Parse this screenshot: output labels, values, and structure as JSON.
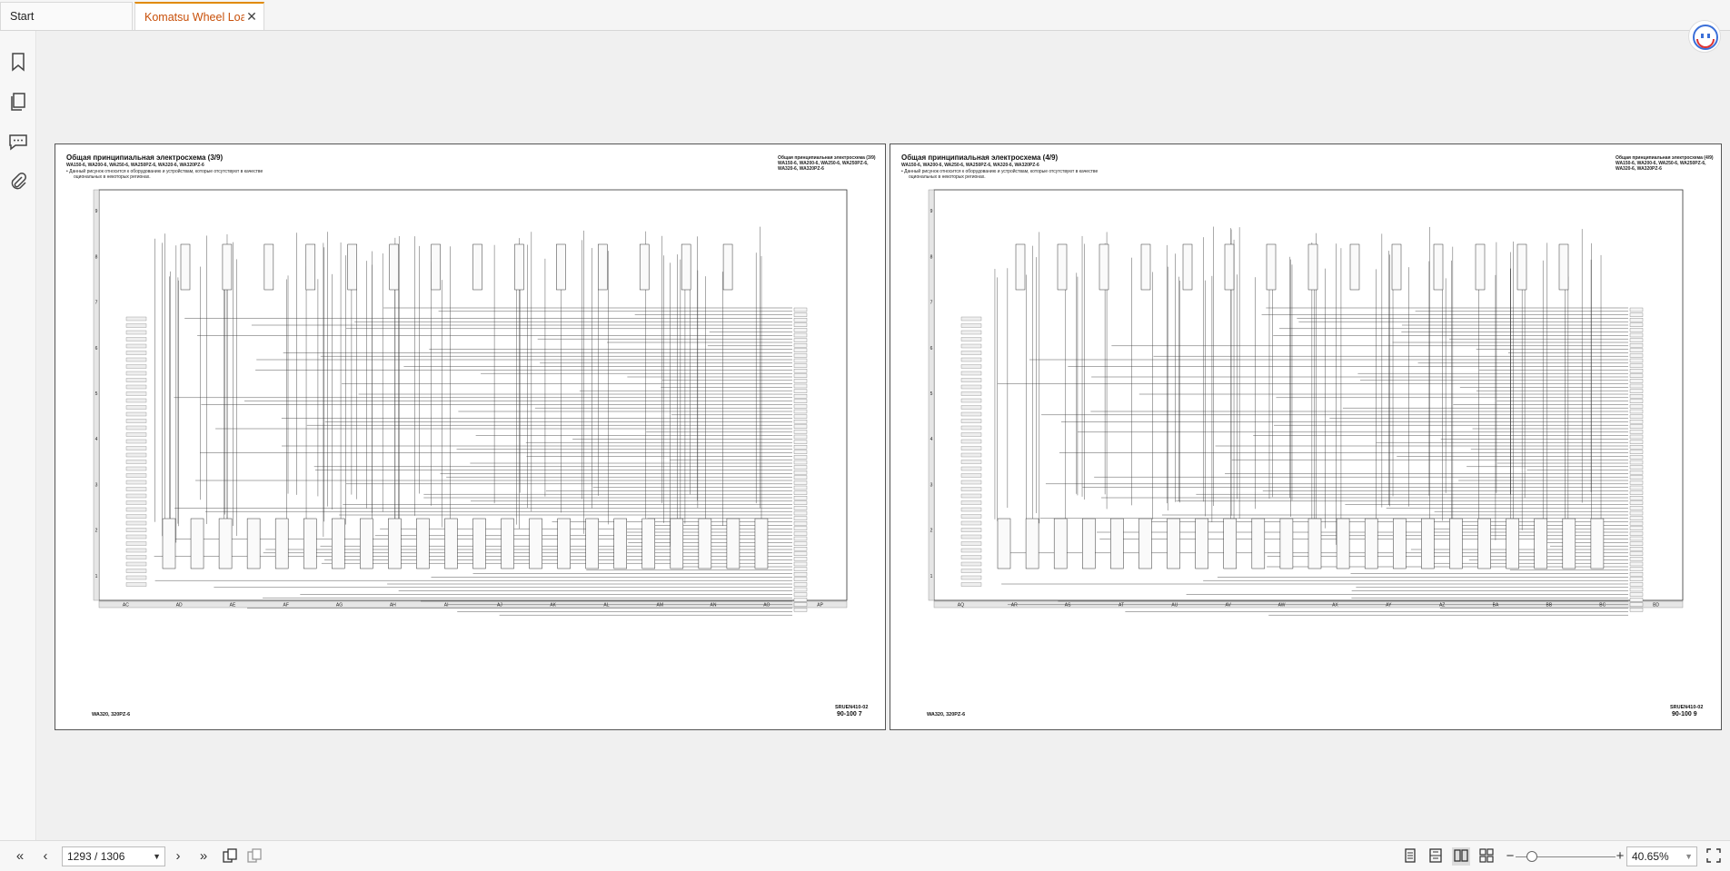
{
  "tabs": {
    "start_label": "Start",
    "doc_label": "Komatsu Wheel Loa...",
    "close_glyph": "✕"
  },
  "sidebar": {
    "icons": [
      "bookmark-icon",
      "pages-icon",
      "comment-icon",
      "attachment-icon"
    ]
  },
  "page_left": {
    "title": "Общая принципиальная электросхема (3/9)",
    "models": "WA150-6, WA200-6, WA250-6, WA250PZ-6, WA320-6, WA320PZ-6",
    "note1": "• Данный рисунок относится к оборудованию и устройствам, которые отсутствуют в качестве",
    "note2": "оциональных в некоторых регионах.",
    "right_title": "Общая принципиальная электросхема (3/9)",
    "right_models1": "WA150-6, WA200-6, WA250-6, WA250PZ-6,",
    "right_models2": "WA320-6, WA320PZ-6",
    "footer_left": "WA320, 320PZ-6",
    "footer_code": "SRUEN410-02",
    "footer_page": "90-100  7",
    "grid_cols": [
      "AC",
      "AD",
      "AE",
      "AF",
      "AG",
      "AH",
      "AI",
      "AJ",
      "AK",
      "AL",
      "AM",
      "AN",
      "AO",
      "AP"
    ],
    "grid_rows": [
      "9",
      "8",
      "7",
      "6",
      "5",
      "4",
      "3",
      "2",
      "1"
    ]
  },
  "page_right": {
    "title": "Общая принципиальная электросхема (4/9)",
    "models": "WA150-6, WA200-6, WA250-6, WA250PZ-6, WA320-6, WA320PZ-6",
    "note1": "• Данный рисунок относится к оборудованию и устройствам, которые отсутствуют в качестве",
    "note2": "оциональных в некоторых регионах.",
    "right_title": "Общая принципиальная электросхема (4/9)",
    "right_models1": "WA150-6, WA200-6, WA250-6, WA250PZ-6,",
    "right_models2": "WA320-6, WA320PZ-6",
    "footer_left": "WA320, 320PZ-6",
    "footer_code": "SRUEN410-02",
    "footer_page": "90-100  9",
    "grid_cols": [
      "AQ",
      "AR",
      "AS",
      "AT",
      "AU",
      "AV",
      "AW",
      "AX",
      "AY",
      "AZ",
      "BA",
      "BB",
      "BC",
      "BD"
    ],
    "grid_rows": [
      "9",
      "8",
      "7",
      "6",
      "5",
      "4",
      "3",
      "2",
      "1"
    ]
  },
  "bottom": {
    "page_indicator": "1293 / 1306",
    "zoom": "40.65%"
  }
}
